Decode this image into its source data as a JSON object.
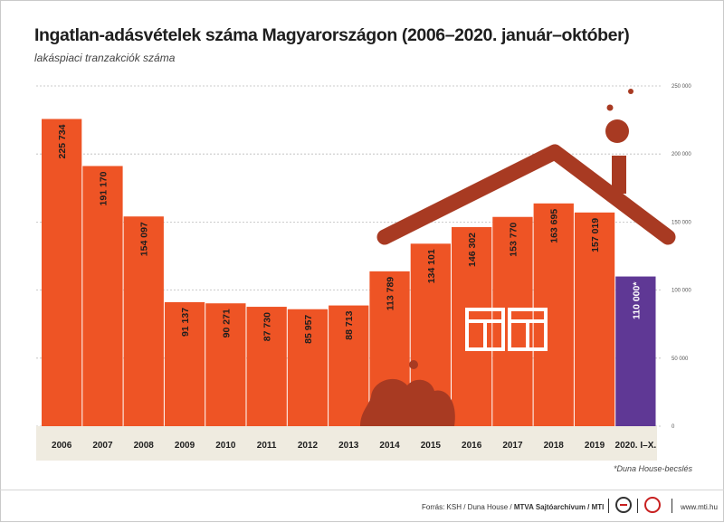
{
  "title": "Ingatlan-adásvételek száma Magyarországon (2006–2020. január–október)",
  "subtitle": "lakáspiaci tranzakciók száma",
  "note": "*Duna House-becslés",
  "footer": {
    "source_prefix": "Forrás: KSH / Duna House / ",
    "source_bold": "MTVA Sajtóarchívum / MTI",
    "site": "www.mti.hu"
  },
  "colors": {
    "bar": "#ee5425",
    "bar_estimate": "#5f3895",
    "roof": "#a83a22",
    "baseline_band": "#efebe0",
    "grid": "#bbbbbb"
  },
  "chart_data": {
    "type": "bar",
    "categories": [
      "2006",
      "2007",
      "2008",
      "2009",
      "2010",
      "2011",
      "2012",
      "2013",
      "2014",
      "2015",
      "2016",
      "2017",
      "2018",
      "2019",
      "2020. I–X."
    ],
    "values": [
      225734,
      191170,
      154097,
      91137,
      90271,
      87730,
      85957,
      88713,
      113789,
      134101,
      146302,
      153770,
      163695,
      157019,
      110000
    ],
    "value_labels": [
      "225 734",
      "191 170",
      "154 097",
      "91 137",
      "90 271",
      "87 730",
      "85 957",
      "88 713",
      "113 789",
      "134 101",
      "146 302",
      "153 770",
      "163 695",
      "157 019",
      "110 000*"
    ],
    "estimate_index": 14,
    "y_ticks": [
      0,
      50000,
      100000,
      150000,
      200000,
      250000
    ],
    "y_tick_labels": [
      "0",
      "50 000",
      "100 000",
      "150 000",
      "200 000",
      "250 000"
    ],
    "ylim": [
      0,
      250000
    ],
    "grid": true,
    "title": "Ingatlan-adásvételek száma Magyarországon (2006–2020. január–október)",
    "xlabel": "",
    "ylabel": ""
  }
}
